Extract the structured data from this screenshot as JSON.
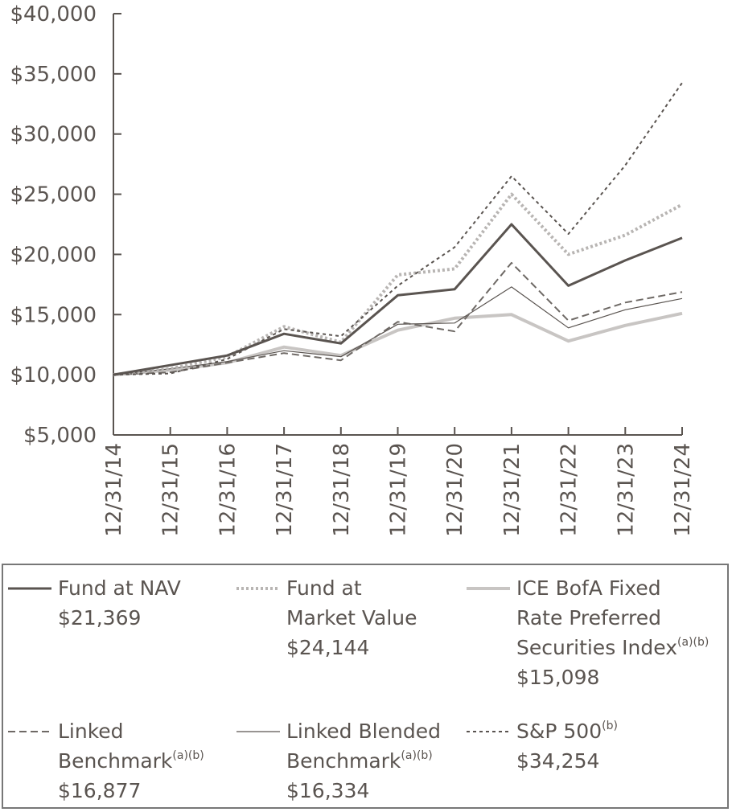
{
  "chart_data": {
    "type": "line",
    "title": "",
    "xlabel": "",
    "ylabel": "",
    "categories": [
      "12/31/14",
      "12/31/15",
      "12/31/16",
      "12/31/17",
      "12/31/18",
      "12/31/19",
      "12/31/20",
      "12/31/21",
      "12/31/22",
      "12/31/23",
      "12/31/24"
    ],
    "ylim": [
      5000,
      40000
    ],
    "yticks": [
      5000,
      10000,
      15000,
      20000,
      25000,
      30000,
      35000,
      40000
    ],
    "ytick_labels": [
      "$5,000",
      "$10,000",
      "$15,000",
      "$20,000",
      "$25,000",
      "$30,000",
      "$35,000",
      "$40,000"
    ],
    "grid": false,
    "series": [
      {
        "key": "nav",
        "name": "Fund at NAV",
        "color": "#5a5450",
        "dash": "solid",
        "weight": "heavy",
        "values": [
          10000,
          10800,
          11600,
          13400,
          12600,
          16600,
          17100,
          22500,
          17400,
          19500,
          21369
        ]
      },
      {
        "key": "mkt",
        "name": "Fund at Market Value",
        "color": "#b8b5b3",
        "dash": "dotted",
        "weight": "heavy",
        "values": [
          10000,
          10500,
          11500,
          14000,
          12700,
          18300,
          18800,
          25000,
          20000,
          21600,
          24144
        ]
      },
      {
        "key": "ice",
        "name": "ICE BofA Fixed Rate Preferred Securities Index",
        "color": "#c8c5c3",
        "dash": "solid",
        "weight": "thick",
        "values": [
          10000,
          10400,
          11000,
          12300,
          11600,
          13700,
          14700,
          15000,
          12800,
          14100,
          15098
        ]
      },
      {
        "key": "lb",
        "name": "Linked Benchmark",
        "color": "#6e6965",
        "dash": "dashed",
        "weight": "normal",
        "values": [
          10000,
          10200,
          11000,
          11800,
          11200,
          14400,
          13600,
          19300,
          14500,
          16000,
          16877
        ]
      },
      {
        "key": "lbb",
        "name": "Linked Blended Benchmark",
        "color": "#5a5450",
        "dash": "solid",
        "weight": "thin",
        "values": [
          10000,
          10500,
          11100,
          12000,
          11500,
          14200,
          14300,
          17300,
          13900,
          15400,
          16334
        ]
      },
      {
        "key": "sp",
        "name": "S&P 500",
        "color": "#5a5450",
        "dash": "shortdash",
        "weight": "normal",
        "values": [
          10000,
          10100,
          11300,
          13800,
          13200,
          17400,
          20600,
          26500,
          21700,
          27400,
          34254
        ]
      }
    ]
  },
  "legend": {
    "nav": {
      "lines": [
        "Fund at NAV"
      ],
      "sup": "",
      "value": "$21,369"
    },
    "mkt": {
      "lines": [
        "Fund at",
        "Market Value"
      ],
      "sup": "",
      "value": "$24,144"
    },
    "ice": {
      "lines": [
        "ICE BofA Fixed",
        "Rate Preferred",
        "Securities Index"
      ],
      "sup": "(a)(b)",
      "value": "$15,098"
    },
    "lb": {
      "lines": [
        "Linked",
        "Benchmark"
      ],
      "sup": "(a)(b)",
      "value": "$16,877"
    },
    "lbb": {
      "lines": [
        "Linked Blended",
        "Benchmark"
      ],
      "sup": "(a)(b)",
      "value": "$16,334"
    },
    "sp": {
      "lines": [
        "S&P 500"
      ],
      "sup": "(b)",
      "value": "$34,254"
    }
  }
}
